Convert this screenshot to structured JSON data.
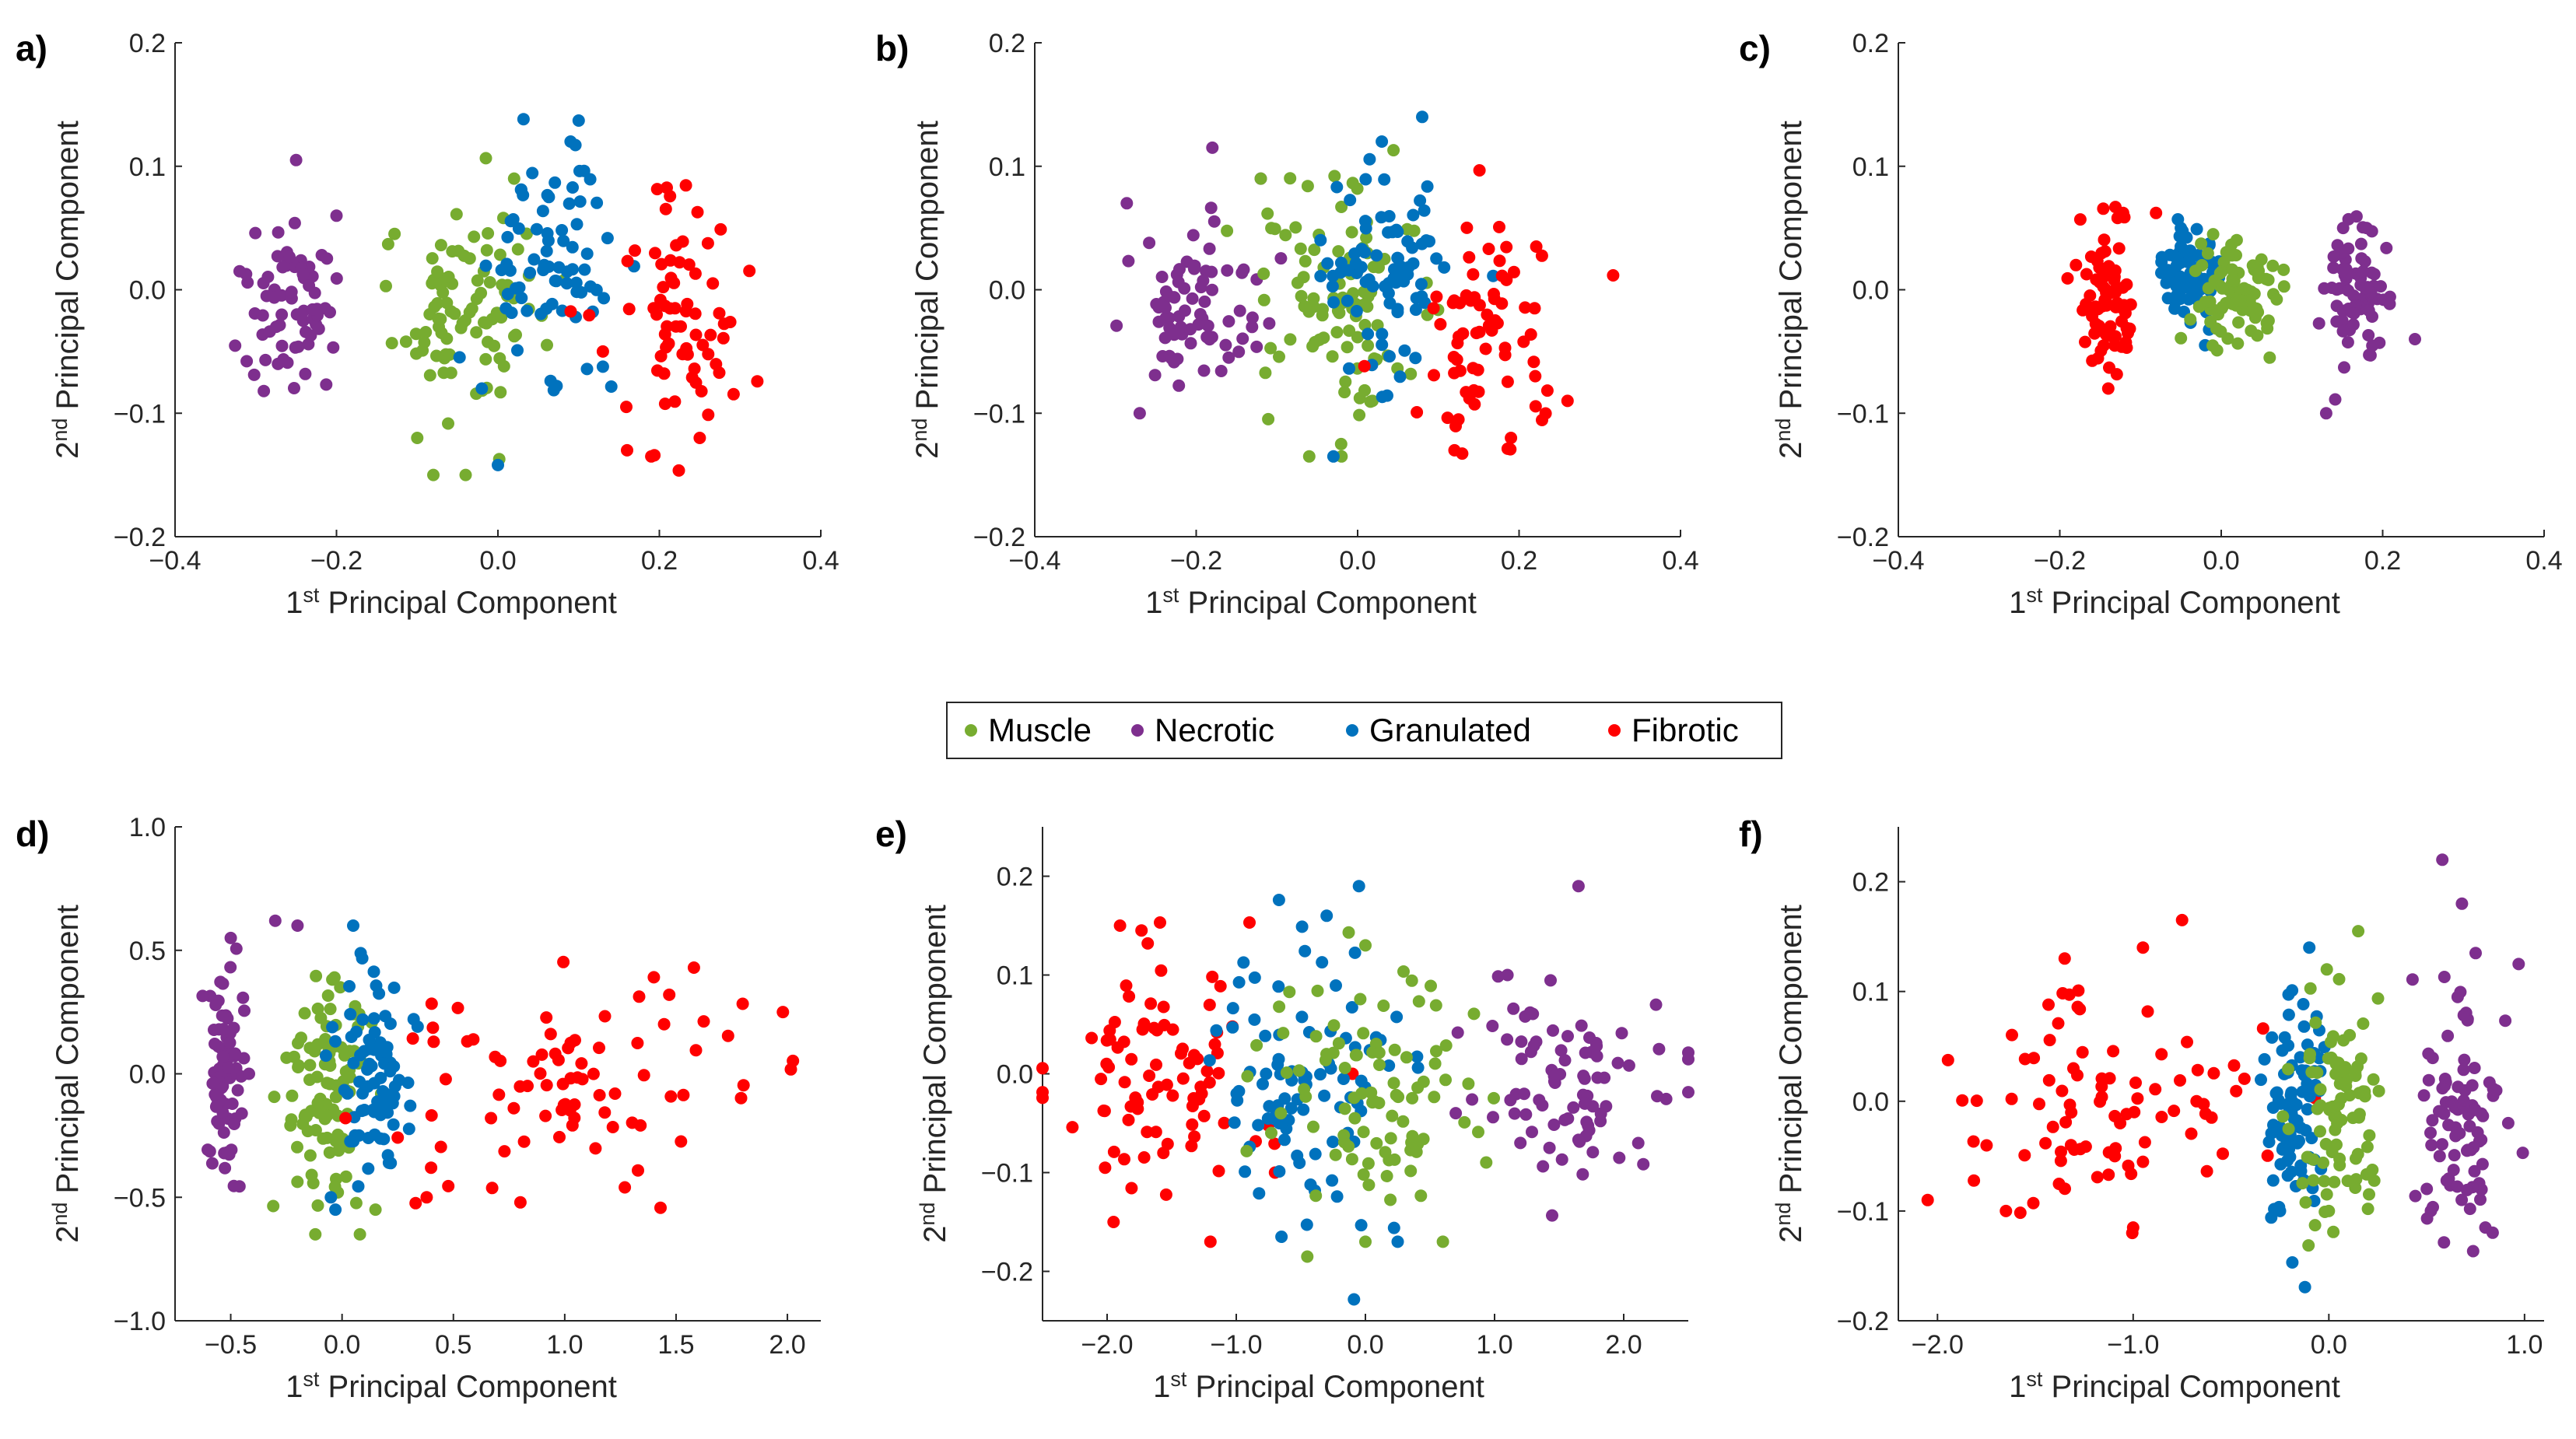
{
  "colors": {
    "Muscle": "#77ac30",
    "Necrotic": "#7e2f8e",
    "Granulated": "#0072bd",
    "Fibrotic": "#ff0000"
  },
  "legend": [
    "Muscle",
    "Necrotic",
    "Granulated",
    "Fibrotic"
  ],
  "chart_data": [
    {
      "panel": "a)",
      "type": "scatter",
      "xlabel": "1st Principal Component",
      "ylabel": "2nd Principal Component",
      "xlim": [
        -0.4,
        0.4
      ],
      "ylim": [
        -0.2,
        0.2
      ],
      "xticks": [
        -0.4,
        -0.2,
        0.0,
        0.2,
        0.4
      ],
      "yticks": [
        -0.2,
        -0.1,
        0.0,
        0.1,
        0.2
      ],
      "xtick_labels": [
        "−0.4",
        "−0.2",
        "0.0",
        "0.2",
        "0.4"
      ],
      "ytick_labels": [
        "−0.2",
        "−0.1",
        "0.0",
        "0.1",
        "0.2"
      ],
      "series": [
        {
          "name": "Necrotic",
          "cx": -0.26,
          "cy": -0.01,
          "sx": 0.035,
          "sy": 0.03,
          "n": 70,
          "extra": [
            [
              -0.25,
              0.105
            ],
            [
              -0.29,
              -0.082
            ],
            [
              -0.32,
              0.015
            ],
            [
              -0.2,
              0.06
            ]
          ]
        },
        {
          "name": "Muscle",
          "cx": -0.04,
          "cy": -0.01,
          "sx": 0.05,
          "sy": 0.045,
          "n": 90,
          "extra": [
            [
              -0.08,
              -0.15
            ],
            [
              -0.04,
              -0.15
            ],
            [
              -0.1,
              -0.12
            ],
            [
              0.02,
              0.09
            ]
          ]
        },
        {
          "name": "Granulated",
          "cx": 0.07,
          "cy": 0.02,
          "sx": 0.035,
          "sy": 0.04,
          "n": 75,
          "extra": [
            [
              0.1,
              0.137
            ],
            [
              0.0,
              -0.142
            ],
            [
              -0.02,
              -0.08
            ],
            [
              0.09,
              0.12
            ]
          ]
        },
        {
          "name": "Fibrotic",
          "cx": 0.22,
          "cy": -0.02,
          "sx": 0.035,
          "sy": 0.05,
          "n": 70,
          "extra": [
            [
              0.19,
              -0.135
            ],
            [
              0.16,
              -0.13
            ],
            [
              0.25,
              -0.12
            ],
            [
              0.13,
              -0.05
            ]
          ]
        }
      ]
    },
    {
      "panel": "b)",
      "type": "scatter",
      "xlabel": "1st Principal Component",
      "ylabel": "2nd Principal Component",
      "xlim": [
        -0.4,
        0.4
      ],
      "ylim": [
        -0.2,
        0.2
      ],
      "xticks": [
        -0.4,
        -0.2,
        0.0,
        0.2,
        0.4
      ],
      "yticks": [
        -0.2,
        -0.1,
        0.0,
        0.1,
        0.2
      ],
      "xtick_labels": [
        "−0.4",
        "−0.2",
        "0.0",
        "0.2",
        "0.4"
      ],
      "ytick_labels": [
        "−0.2",
        "−0.1",
        "0.0",
        "0.1",
        "0.2"
      ],
      "series": [
        {
          "name": "Necrotic",
          "cx": -0.2,
          "cy": -0.01,
          "sx": 0.04,
          "sy": 0.035,
          "n": 75,
          "extra": [
            [
              -0.18,
              0.115
            ],
            [
              -0.27,
              -0.1
            ],
            [
              -0.12,
              0.09
            ]
          ]
        },
        {
          "name": "Muscle",
          "cx": -0.02,
          "cy": -0.01,
          "sx": 0.05,
          "sy": 0.05,
          "n": 95,
          "extra": [
            [
              -0.06,
              -0.135
            ],
            [
              -0.02,
              -0.135
            ],
            [
              -0.12,
              0.09
            ]
          ]
        },
        {
          "name": "Granulated",
          "cx": 0.04,
          "cy": 0.02,
          "sx": 0.04,
          "sy": 0.045,
          "n": 80,
          "extra": [
            [
              0.08,
              0.14
            ],
            [
              -0.03,
              -0.135
            ],
            [
              0.03,
              0.12
            ]
          ]
        },
        {
          "name": "Fibrotic",
          "cx": 0.15,
          "cy": -0.03,
          "sx": 0.045,
          "sy": 0.05,
          "n": 70,
          "extra": [
            [
              0.12,
              -0.13
            ],
            [
              0.19,
              -0.12
            ],
            [
              0.26,
              -0.09
            ],
            [
              0.22,
              -0.07
            ]
          ]
        }
      ]
    },
    {
      "panel": "c)",
      "type": "scatter",
      "xlabel": "1st Principal Component",
      "ylabel": "2nd Principal Component",
      "xlim": [
        -0.4,
        0.4
      ],
      "ylim": [
        -0.2,
        0.2
      ],
      "xticks": [
        -0.4,
        -0.2,
        0.0,
        0.2,
        0.4
      ],
      "yticks": [
        -0.2,
        -0.1,
        0.0,
        0.1,
        0.2
      ],
      "xtick_labels": [
        "−0.4",
        "−0.2",
        "0.0",
        "0.2",
        "0.4"
      ],
      "ytick_labels": [
        "−0.2",
        "−0.1",
        "0.0",
        "0.1",
        "0.2"
      ],
      "series": [
        {
          "name": "Fibrotic",
          "cx": -0.14,
          "cy": -0.01,
          "sx": 0.02,
          "sy": 0.035,
          "n": 75,
          "extra": [
            [
              -0.14,
              -0.08
            ],
            [
              -0.18,
              0.02
            ]
          ]
        },
        {
          "name": "Granulated",
          "cx": -0.04,
          "cy": 0.01,
          "sx": 0.018,
          "sy": 0.018,
          "n": 85,
          "extra": [
            [
              -0.02,
              -0.045
            ],
            [
              -0.05,
              0.05
            ]
          ]
        },
        {
          "name": "Muscle",
          "cx": 0.02,
          "cy": -0.005,
          "sx": 0.025,
          "sy": 0.02,
          "n": 85,
          "extra": [
            [
              0.06,
              -0.055
            ],
            [
              -0.01,
              0.045
            ]
          ]
        },
        {
          "name": "Necrotic",
          "cx": 0.17,
          "cy": -0.005,
          "sx": 0.022,
          "sy": 0.03,
          "n": 75,
          "extra": [
            [
              0.13,
              -0.1
            ],
            [
              0.24,
              -0.04
            ],
            [
              0.18,
              0.05
            ]
          ]
        }
      ]
    },
    {
      "panel": "d)",
      "type": "scatter",
      "xlabel": "1st Principal Component",
      "ylabel": "2nd Principal Component",
      "xlim": [
        -0.75,
        2.15
      ],
      "ylim": [
        -1.0,
        1.0
      ],
      "xticks": [
        -0.5,
        0.0,
        0.5,
        1.0,
        1.5,
        2.0
      ],
      "yticks": [
        -1.0,
        -0.5,
        0.0,
        0.5,
        1.0
      ],
      "xtick_labels": [
        "−0.5",
        "0.0",
        "0.5",
        "1.0",
        "1.5",
        "2.0"
      ],
      "ytick_labels": [
        "−1.0",
        "−0.5",
        "0.0",
        "0.5",
        "1.0"
      ],
      "series": [
        {
          "name": "Necrotic",
          "cx": -0.53,
          "cy": 0.0,
          "sx": 0.04,
          "sy": 0.2,
          "n": 80,
          "extra": [
            [
              -0.3,
              0.62
            ],
            [
              -0.5,
              0.55
            ],
            [
              -0.2,
              0.6
            ]
          ]
        },
        {
          "name": "Muscle",
          "cx": -0.08,
          "cy": -0.05,
          "sx": 0.1,
          "sy": 0.22,
          "n": 95,
          "extra": [
            [
              -0.12,
              -0.65
            ],
            [
              0.08,
              -0.65
            ],
            [
              0.15,
              -0.55
            ]
          ]
        },
        {
          "name": "Granulated",
          "cx": 0.15,
          "cy": 0.0,
          "sx": 0.08,
          "sy": 0.2,
          "n": 85,
          "extra": [
            [
              0.05,
              0.6
            ],
            [
              -0.05,
              -0.5
            ],
            [
              -0.03,
              -0.55
            ]
          ]
        },
        {
          "name": "Fibrotic",
          "cx": 1.05,
          "cy": -0.05,
          "sx": 0.42,
          "sy": 0.18,
          "n": 80,
          "extra": [
            [
              1.58,
              0.43
            ],
            [
              1.27,
              -0.46
            ],
            [
              0.38,
              -0.5
            ],
            [
              1.98,
              0.25
            ],
            [
              0.4,
              -0.38
            ]
          ]
        }
      ]
    },
    {
      "panel": "e)",
      "type": "scatter",
      "xlabel": "1st Principal Component",
      "ylabel": "2nd Principal Component",
      "xlim": [
        -2.5,
        2.5
      ],
      "ylim": [
        -0.25,
        0.25
      ],
      "xticks": [
        -2.0,
        -1.0,
        0.0,
        1.0,
        2.0
      ],
      "yticks": [
        -0.2,
        -0.1,
        0.0,
        0.1,
        0.2
      ],
      "xtick_labels": [
        "−2.0",
        "−1.0",
        "0.0",
        "1.0",
        "2.0"
      ],
      "ytick_labels": [
        "−0.2",
        "−0.1",
        "0.0",
        "0.1",
        "0.2"
      ],
      "series": [
        {
          "name": "Fibrotic",
          "cx": -1.6,
          "cy": 0.0,
          "sx": 0.35,
          "sy": 0.06,
          "n": 85,
          "extra": [
            [
              -1.9,
              0.15
            ],
            [
              -1.95,
              -0.15
            ],
            [
              -1.2,
              -0.17
            ],
            [
              -0.7,
              -0.1
            ],
            [
              -0.1,
              0.0
            ]
          ]
        },
        {
          "name": "Granulated",
          "cx": -0.45,
          "cy": 0.0,
          "sx": 0.38,
          "sy": 0.06,
          "n": 90,
          "extra": [
            [
              -0.05,
              0.19
            ],
            [
              -0.3,
              0.16
            ],
            [
              -0.65,
              -0.165
            ],
            [
              0.25,
              -0.17
            ]
          ]
        },
        {
          "name": "Muscle",
          "cx": 0.15,
          "cy": -0.02,
          "sx": 0.45,
          "sy": 0.06,
          "n": 90,
          "extra": [
            [
              0.0,
              0.13
            ],
            [
              -0.45,
              -0.185
            ],
            [
              0.6,
              -0.17
            ],
            [
              0.0,
              -0.17
            ]
          ]
        },
        {
          "name": "Necrotic",
          "cx": 1.6,
          "cy": 0.0,
          "sx": 0.38,
          "sy": 0.05,
          "n": 80,
          "extra": [
            [
              1.65,
              0.19
            ],
            [
              1.1,
              0.1
            ],
            [
              2.25,
              0.07
            ],
            [
              1.2,
              -0.07
            ]
          ]
        }
      ]
    },
    {
      "panel": "f)",
      "type": "scatter",
      "xlabel": "1st Principal Component",
      "ylabel": "2nd Principal Component",
      "xlim": [
        -2.2,
        1.1
      ],
      "ylim": [
        -0.2,
        0.25
      ],
      "xticks": [
        -2.0,
        -1.0,
        0.0,
        1.0
      ],
      "yticks": [
        -0.2,
        -0.1,
        0.0,
        0.1,
        0.2
      ],
      "xtick_labels": [
        "−2.0",
        "−1.0",
        "0.0",
        "1.0"
      ],
      "ytick_labels": [
        "−0.2",
        "−0.1",
        "0.0",
        "0.1",
        "0.2"
      ],
      "series": [
        {
          "name": "Fibrotic",
          "cx": -1.15,
          "cy": -0.01,
          "sx": 0.38,
          "sy": 0.05,
          "n": 85,
          "extra": [
            [
              -0.75,
              0.165
            ],
            [
              -0.95,
              0.14
            ],
            [
              -1.35,
              0.13
            ],
            [
              -1.0,
              -0.115
            ],
            [
              -2.05,
              -0.09
            ],
            [
              -1.65,
              -0.1
            ]
          ]
        },
        {
          "name": "Granulated",
          "cx": -0.17,
          "cy": -0.005,
          "sx": 0.07,
          "sy": 0.05,
          "n": 90,
          "extra": [
            [
              -0.25,
              -0.1
            ],
            [
              -0.1,
              0.14
            ]
          ]
        },
        {
          "name": "Muscle",
          "cx": 0.05,
          "cy": 0.0,
          "sx": 0.1,
          "sy": 0.05,
          "n": 90,
          "extra": [
            [
              0.15,
              0.155
            ],
            [
              0.0,
              -0.1
            ],
            [
              0.2,
              -0.098
            ]
          ]
        },
        {
          "name": "Necrotic",
          "cx": 0.66,
          "cy": -0.02,
          "sx": 0.1,
          "sy": 0.06,
          "n": 85,
          "extra": [
            [
              0.58,
              0.22
            ],
            [
              0.68,
              0.18
            ],
            [
              0.97,
              0.125
            ],
            [
              0.8,
              -0.115
            ],
            [
              0.75,
              0.135
            ]
          ]
        }
      ]
    }
  ]
}
